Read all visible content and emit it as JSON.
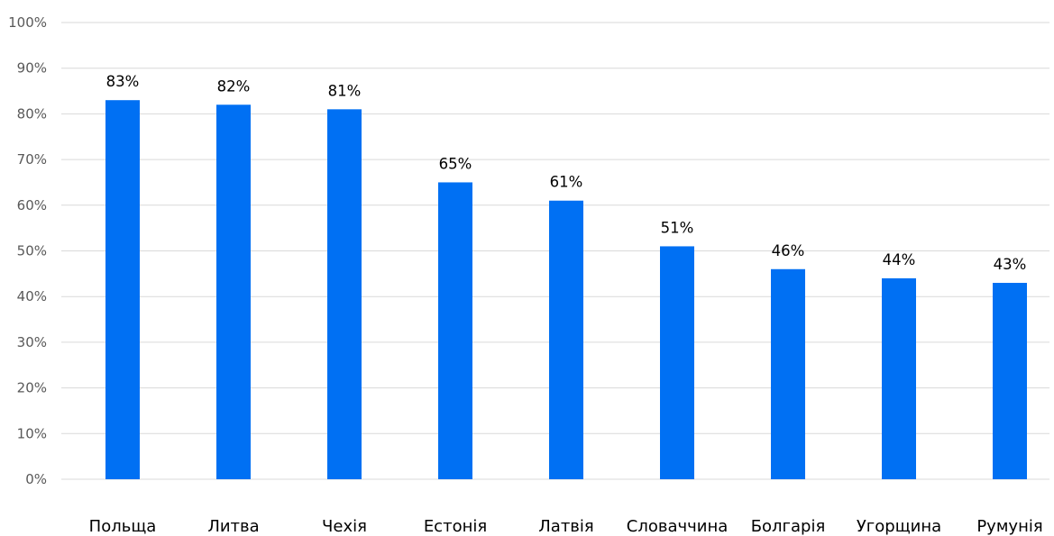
{
  "chart_data": {
    "type": "bar",
    "title": "",
    "xlabel": "",
    "ylabel": "",
    "categories": [
      "Польща",
      "Литва",
      "Чехія",
      "Естонія",
      "Латвія",
      "Словаччина",
      "Болгарія",
      "Угорщина",
      "Румунія"
    ],
    "values": [
      83,
      82,
      81,
      65,
      61,
      51,
      46,
      44,
      43
    ],
    "data_labels": [
      "83%",
      "82%",
      "81%",
      "65%",
      "61%",
      "51%",
      "46%",
      "44%",
      "43%"
    ],
    "ylim": [
      0,
      100
    ],
    "y_ticks": [
      "0%",
      "10%",
      "20%",
      "30%",
      "40%",
      "50%",
      "60%",
      "70%",
      "80%",
      "90%",
      "100%"
    ],
    "grid": true,
    "legend": "none",
    "bar_color": "#0070F3",
    "grid_color": "#D9D9D9"
  }
}
